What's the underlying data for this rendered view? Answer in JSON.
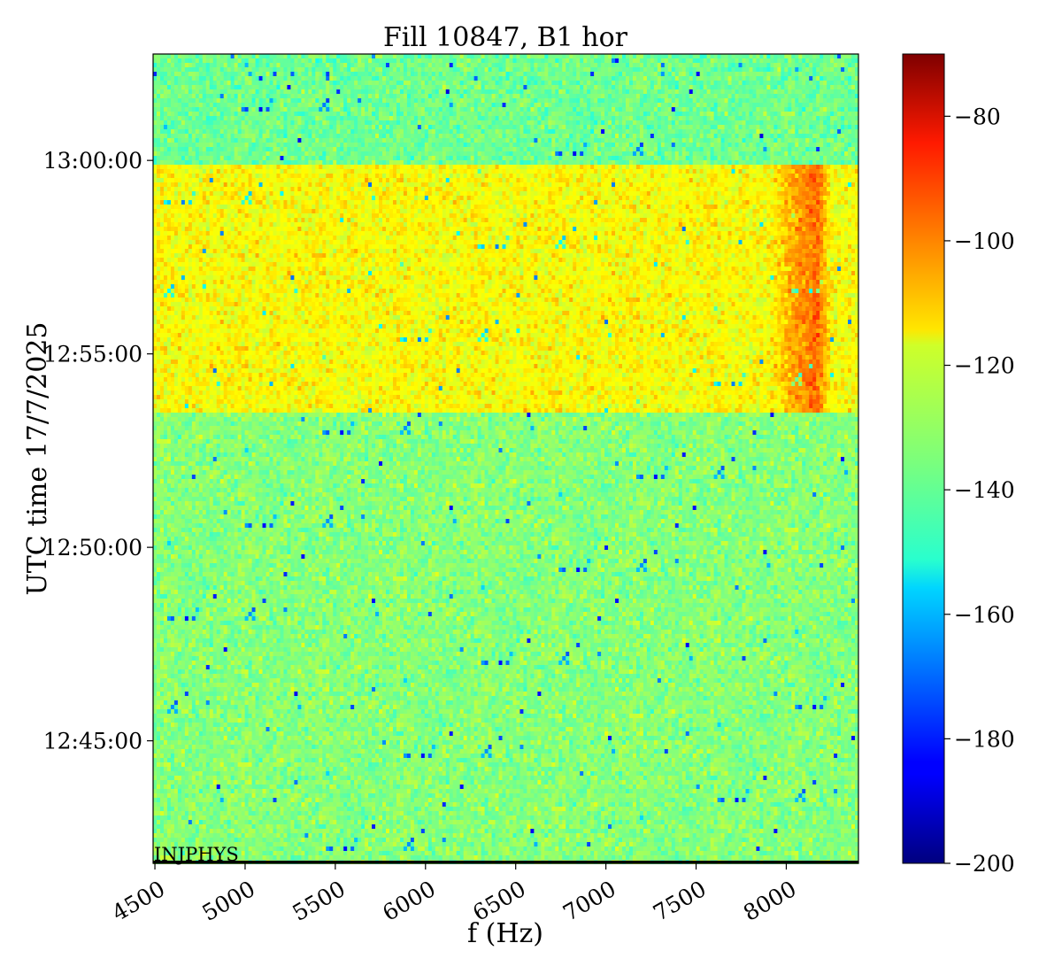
{
  "chart_data": {
    "type": "heatmap",
    "title": "Fill 10847, B1 hor",
    "xlabel": "f (Hz)",
    "ylabel": "UTC time 17/7/2025",
    "colormap": "jet",
    "x": {
      "range": [
        4490,
        8400
      ],
      "ticks": [
        4500,
        5000,
        5500,
        6000,
        6500,
        7000,
        7500,
        8000
      ],
      "tick_labels": [
        "4500",
        "5000",
        "5500",
        "6000",
        "6500",
        "7000",
        "7500",
        "8000"
      ]
    },
    "y": {
      "range": [
        "12:41:50",
        "13:02:45"
      ],
      "ticks": [
        "12:45:00",
        "12:50:00",
        "12:55:00",
        "13:00:00"
      ],
      "tick_labels": [
        "12:45:00",
        "12:50:00",
        "12:55:00",
        "13:00:00"
      ]
    },
    "colorbar": {
      "range": [
        -200,
        -70
      ],
      "ticks": [
        -200,
        -180,
        -160,
        -140,
        -120,
        -100,
        -80
      ],
      "tick_labels": [
        "−200",
        "−180",
        "−160",
        "−140",
        "−120",
        "−100",
        "−80"
      ]
    },
    "bands": [
      {
        "t_start": "12:41:50",
        "t_end": "12:53:30",
        "mean_value": -134
      },
      {
        "t_start": "12:53:30",
        "t_end": "12:59:50",
        "mean_value": -119
      },
      {
        "t_start": "12:59:50",
        "t_end": "13:02:45",
        "mean_value": -137
      }
    ],
    "lines": [
      {
        "f_start": 7900,
        "f_end": 8250,
        "t_start": "12:53:30",
        "t_end": "12:59:50",
        "peak_value": -95,
        "center_f": 8170
      }
    ],
    "annotation": "INJPHYS",
    "grid": false
  }
}
